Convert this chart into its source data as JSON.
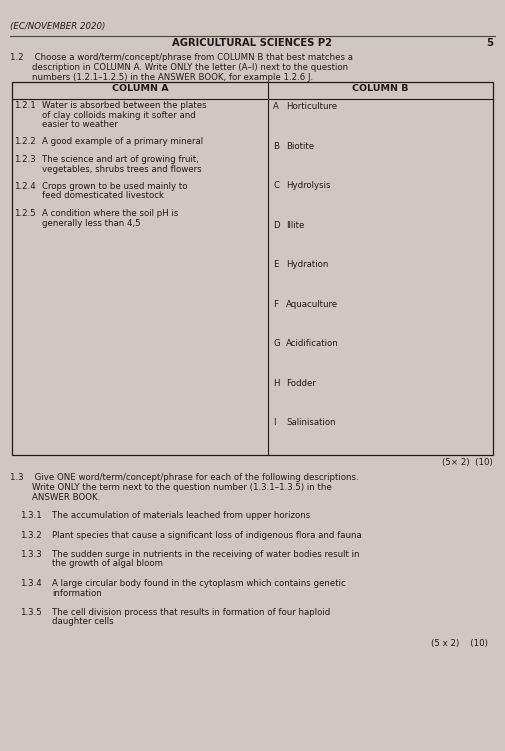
{
  "bg_color": "#cfc8c0",
  "header_line_color": "#444444",
  "header_text": "AGRICULTURAL SCIENCES P2",
  "header_small": "(EC/NOVEMBER 2020)",
  "page_num": "5",
  "q12_line1": "1.2    Choose a word/term/concept/phrase from COLUMN B that best matches a",
  "q12_line2": "        description in COLUMN A. Write ONLY the letter (A–I) next to the question",
  "q12_line3": "        numbers (1.2.1–1.2.5) in the ANSWER BOOK, for example 1.2.6 J.",
  "col_a_header": "COLUMN A",
  "col_b_header": "COLUMN B",
  "col_a_items": [
    {
      "num": "1.2.1",
      "lines": [
        "Water is absorbed between the plates",
        "of clay colloids making it softer and",
        "easier to weather"
      ]
    },
    {
      "num": "1.2.2",
      "lines": [
        "A good example of a primary mineral"
      ]
    },
    {
      "num": "1.2.3",
      "lines": [
        "The science and art of growing fruit,",
        "vegetables, shrubs trees and flowers"
      ]
    },
    {
      "num": "1.2.4",
      "lines": [
        "Crops grown to be used mainly to",
        "feed domesticated livestock"
      ]
    },
    {
      "num": "1.2.5",
      "lines": [
        "A condition where the soil pH is",
        "generally less than 4,5"
      ]
    }
  ],
  "col_b_items": [
    {
      "letter": "A",
      "text": "Horticulture"
    },
    {
      "letter": "B",
      "text": "Biotite"
    },
    {
      "letter": "C",
      "text": "Hydrolysis"
    },
    {
      "letter": "D",
      "text": "Illite"
    },
    {
      "letter": "E",
      "text": "Hydration"
    },
    {
      "letter": "F",
      "text": "Aquaculture"
    },
    {
      "letter": "G",
      "text": "Acidification"
    },
    {
      "letter": "H",
      "text": "Fodder"
    },
    {
      "letter": "I",
      "text": "Salinisation"
    }
  ],
  "score_12": "(5× 2)  (10)",
  "q13_line1": "1.3    Give ONE word/term/concept/phrase for each of the following descriptions.",
  "q13_line2": "        Write ONLY the term next to the question number (1.3.1–1.3.5) in the",
  "q13_line3": "        ANSWER BOOK.",
  "q13_items": [
    {
      "num": "1.3.1",
      "lines": [
        "The accumulation of materials leached from upper horizons"
      ]
    },
    {
      "num": "1.3.2",
      "lines": [
        "Plant species that cause a significant loss of indigenous flora and fauna"
      ]
    },
    {
      "num": "1.3.3",
      "lines": [
        "The sudden surge in nutrients in the receiving of water bodies result in",
        "the growth of algal bloom"
      ]
    },
    {
      "num": "1.3.4",
      "lines": [
        "A large circular body found in the cytoplasm which contains genetic",
        "information"
      ]
    },
    {
      "num": "1.3.5",
      "lines": [
        "The cell division process that results in formation of four haploid",
        "daughter cells"
      ]
    }
  ],
  "score_13": "(5 x 2)    (10)",
  "text_color": "#1e1a17",
  "table_border_color": "#1e1a17"
}
